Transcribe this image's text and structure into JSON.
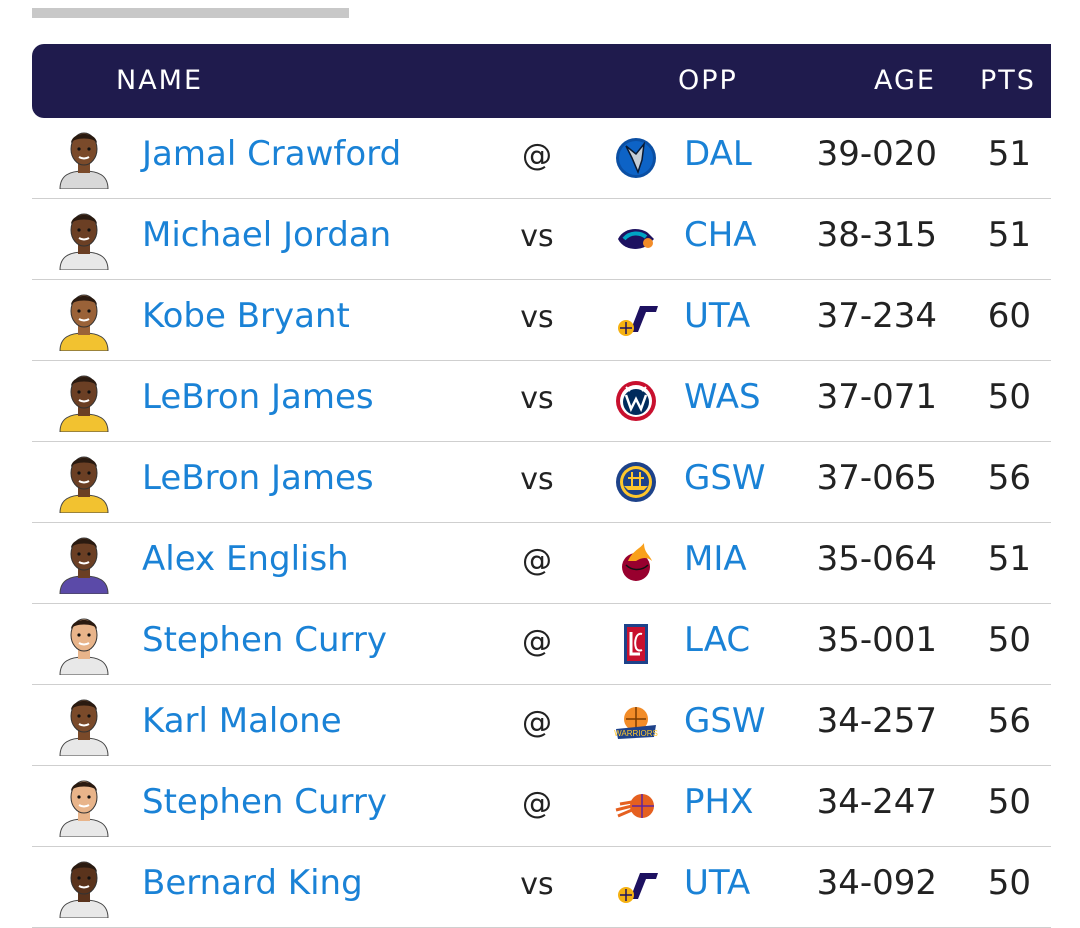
{
  "table": {
    "headers": {
      "name": "NAME",
      "opp": "OPP",
      "age": "AGE",
      "pts": "PTS"
    },
    "rows": [
      {
        "player": "Jamal Crawford",
        "venue": "@",
        "team": "DAL",
        "age": "39-020",
        "pts": "51",
        "logo": "mavericks-logo-icon",
        "jersey": "#d8d8d8",
        "skin": "#7a4a2a"
      },
      {
        "player": "Michael Jordan",
        "venue": "vs",
        "team": "CHA",
        "age": "38-315",
        "pts": "51",
        "logo": "hornets-logo-icon",
        "jersey": "#e8e8e8",
        "skin": "#6b3f24"
      },
      {
        "player": "Kobe Bryant",
        "venue": "vs",
        "team": "UTA",
        "age": "37-234",
        "pts": "60",
        "logo": "jazz-logo-icon",
        "jersey": "#f2c230",
        "skin": "#9a6238"
      },
      {
        "player": "LeBron James",
        "venue": "vs",
        "team": "WAS",
        "age": "37-071",
        "pts": "50",
        "logo": "wizards-logo-icon",
        "jersey": "#f2c230",
        "skin": "#6b3f24"
      },
      {
        "player": "LeBron James",
        "venue": "vs",
        "team": "GSW",
        "age": "37-065",
        "pts": "56",
        "logo": "warriors-logo-icon",
        "jersey": "#f2c230",
        "skin": "#6b3f24"
      },
      {
        "player": "Alex English",
        "venue": "@",
        "team": "MIA",
        "age": "35-064",
        "pts": "51",
        "logo": "heat-logo-icon",
        "jersey": "#5b4aa8",
        "skin": "#6b3f24"
      },
      {
        "player": "Stephen Curry",
        "venue": "@",
        "team": "LAC",
        "age": "35-001",
        "pts": "50",
        "logo": "clippers-logo-icon",
        "jersey": "#e8e8e8",
        "skin": "#e8b48a"
      },
      {
        "player": "Karl Malone",
        "venue": "@",
        "team": "GSW",
        "age": "34-257",
        "pts": "56",
        "logo": "warriors-classic-logo-icon",
        "jersey": "#e8e8e8",
        "skin": "#7a4a2a"
      },
      {
        "player": "Stephen Curry",
        "venue": "@",
        "team": "PHX",
        "age": "34-247",
        "pts": "50",
        "logo": "suns-logo-icon",
        "jersey": "#e8e8e8",
        "skin": "#e8b48a"
      },
      {
        "player": "Bernard King",
        "venue": "vs",
        "team": "UTA",
        "age": "34-092",
        "pts": "50",
        "logo": "jazz-logo-icon",
        "jersey": "#e8e8e8",
        "skin": "#5a331c"
      }
    ]
  },
  "colors": {
    "header_bg": "#1f1b4d",
    "link": "#1a82d6",
    "text": "#222222",
    "divider": "#cfcfcf"
  }
}
